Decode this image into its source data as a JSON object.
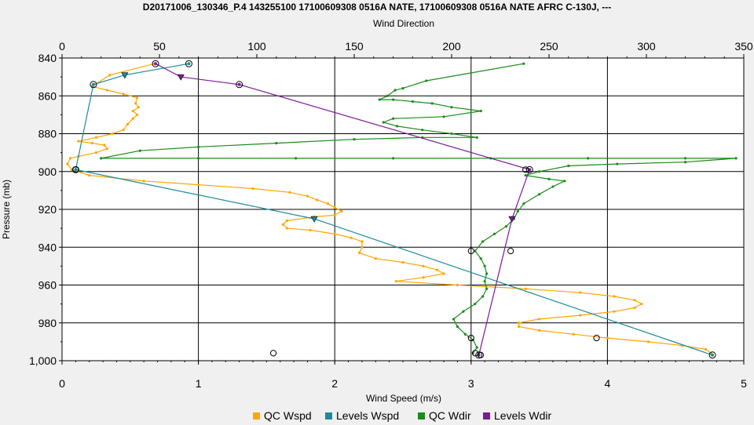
{
  "title": "D20171006_130346_P.4 143255100 17100609308 0516A NATE, 17100609308 0516A NATE AFRC C-130J, ---",
  "chart_data": {
    "type": "line",
    "title": "D20171006_130346_P.4 143255100 17100609308 0516A NATE, 17100609308 0516A NATE AFRC C-130J, ---",
    "xlabel": "Wind Speed (m/s)",
    "x2label": "Wind Direction",
    "ylabel": "Pressure (mb)",
    "xlim": [
      0,
      5
    ],
    "x2lim": [
      0,
      350
    ],
    "ylim": [
      840,
      1000
    ],
    "y_inverted": true,
    "grid": true,
    "legend_position": "bottom",
    "xticks": [
      "0",
      "1",
      "2",
      "3",
      "4",
      "5"
    ],
    "x2ticks": [
      "0",
      "50",
      "100",
      "150",
      "200",
      "250",
      "300",
      "350"
    ],
    "yticks": [
      "840",
      "860",
      "880",
      "900",
      "920",
      "940",
      "960",
      "980",
      "1,000"
    ],
    "series": [
      {
        "name": "QC Wspd",
        "axis": "bottom",
        "color": "#ffa500",
        "points": [
          [
            0.68,
            843
          ],
          [
            0.35,
            849
          ],
          [
            0.22,
            855
          ],
          [
            0.33,
            857
          ],
          [
            0.45,
            859
          ],
          [
            0.55,
            861
          ],
          [
            0.54,
            864
          ],
          [
            0.56,
            866
          ],
          [
            0.52,
            868
          ],
          [
            0.55,
            870
          ],
          [
            0.52,
            872
          ],
          [
            0.48,
            875
          ],
          [
            0.45,
            878
          ],
          [
            0.37,
            880
          ],
          [
            0.25,
            882
          ],
          [
            0.12,
            884
          ],
          [
            0.22,
            885
          ],
          [
            0.31,
            886
          ],
          [
            0.33,
            888
          ],
          [
            0.25,
            890
          ],
          [
            0.12,
            892
          ],
          [
            0.06,
            893
          ],
          [
            0.04,
            896
          ],
          [
            0.07,
            899
          ],
          [
            0.2,
            902
          ],
          [
            0.6,
            905
          ],
          [
            1.0,
            907
          ],
          [
            1.4,
            909
          ],
          [
            1.67,
            911
          ],
          [
            1.8,
            913
          ],
          [
            1.87,
            915
          ],
          [
            1.95,
            917
          ],
          [
            2.0,
            919
          ],
          [
            2.05,
            921
          ],
          [
            2.0,
            923
          ],
          [
            1.85,
            924
          ],
          [
            1.65,
            926
          ],
          [
            1.62,
            928
          ],
          [
            1.65,
            930
          ],
          [
            1.82,
            931
          ],
          [
            2.0,
            933
          ],
          [
            2.12,
            935
          ],
          [
            2.2,
            937
          ],
          [
            2.2,
            940
          ],
          [
            2.18,
            943
          ],
          [
            2.3,
            946
          ],
          [
            2.5,
            948
          ],
          [
            2.65,
            950
          ],
          [
            2.75,
            952
          ],
          [
            2.8,
            954
          ],
          [
            2.65,
            956
          ],
          [
            2.45,
            958
          ],
          [
            2.9,
            960
          ],
          [
            3.4,
            962
          ],
          [
            3.8,
            964
          ],
          [
            4.05,
            966
          ],
          [
            4.2,
            968
          ],
          [
            4.25,
            970
          ],
          [
            4.2,
            972
          ],
          [
            4.05,
            974
          ],
          [
            3.8,
            976
          ],
          [
            3.5,
            978
          ],
          [
            3.35,
            980
          ],
          [
            3.35,
            982
          ],
          [
            3.5,
            984
          ],
          [
            3.75,
            986
          ],
          [
            4.0,
            988
          ],
          [
            4.3,
            990
          ],
          [
            4.55,
            992
          ],
          [
            4.72,
            994
          ],
          [
            4.76,
            996
          ]
        ]
      },
      {
        "name": "Levels Wspd",
        "axis": "bottom",
        "color": "#1a8c9c",
        "points": [
          [
            0.93,
            843
          ],
          [
            0.46,
            849
          ],
          [
            0.23,
            854
          ],
          [
            0.1,
            899
          ],
          [
            1.85,
            925
          ],
          [
            4.77,
            997
          ]
        ]
      },
      {
        "name": "QC Wdir",
        "axis": "top",
        "color": "#1a8c1a",
        "points": [
          [
            237,
            843
          ],
          [
            187,
            852
          ],
          [
            175,
            856
          ],
          [
            171,
            857
          ],
          [
            167,
            860
          ],
          [
            163,
            862
          ],
          [
            170,
            862
          ],
          [
            180,
            863
          ],
          [
            190,
            864
          ],
          [
            200,
            866
          ],
          [
            215,
            868
          ],
          [
            196,
            871
          ],
          [
            170,
            872
          ],
          [
            165,
            874
          ],
          [
            172,
            876
          ],
          [
            185,
            878
          ],
          [
            200,
            880
          ],
          [
            213,
            882
          ],
          [
            185,
            882
          ],
          [
            150,
            883
          ],
          [
            110,
            885
          ],
          [
            70,
            887
          ],
          [
            40,
            889
          ],
          [
            20,
            893
          ],
          [
            70,
            893
          ],
          [
            120,
            893
          ],
          [
            170,
            893
          ],
          [
            220,
            893
          ],
          [
            270,
            893
          ],
          [
            320,
            893
          ],
          [
            346,
            893
          ],
          [
            320,
            895
          ],
          [
            285,
            896
          ],
          [
            260,
            897
          ],
          [
            245,
            900
          ],
          [
            238,
            902
          ],
          [
            250,
            904
          ],
          [
            258,
            905
          ],
          [
            252,
            908
          ],
          [
            245,
            912
          ],
          [
            237,
            917
          ],
          [
            234,
            921
          ],
          [
            232,
            925
          ],
          [
            228,
            929
          ],
          [
            222,
            933
          ],
          [
            216,
            937
          ],
          [
            212,
            942
          ],
          [
            215,
            946
          ],
          [
            217,
            950
          ],
          [
            218,
            954
          ],
          [
            217,
            958
          ],
          [
            218,
            962
          ],
          [
            216,
            966
          ],
          [
            212,
            970
          ],
          [
            206,
            974
          ],
          [
            201,
            978
          ],
          [
            203,
            982
          ],
          [
            207,
            986
          ],
          [
            211,
            989
          ],
          [
            213,
            993
          ],
          [
            211,
            996
          ]
        ]
      },
      {
        "name": "Levels Wdir",
        "axis": "top",
        "color": "#7b1a9c",
        "points": [
          [
            48,
            843
          ],
          [
            61,
            850
          ],
          [
            91,
            854
          ],
          [
            240,
            899
          ],
          [
            231,
            925
          ],
          [
            214,
            997
          ]
        ]
      }
    ],
    "markers": [
      {
        "series": "Levels Wspd",
        "shape": "circle",
        "x": 0.93,
        "y": 843
      },
      {
        "series": "Levels Wspd",
        "shape": "triangle",
        "x": 0.46,
        "y": 849
      },
      {
        "series": "Levels Wspd",
        "shape": "circle",
        "x": 0.23,
        "y": 854
      },
      {
        "series": "Levels Wspd",
        "shape": "circle",
        "x": 0.1,
        "y": 899
      },
      {
        "series": "Levels Wspd",
        "shape": "triangle",
        "x": 1.85,
        "y": 925
      },
      {
        "series": "Levels Wspd",
        "shape": "circle",
        "x": 4.77,
        "y": 997
      },
      {
        "series": "Levels Wdir",
        "shape": "circle",
        "x": 48,
        "y": 843
      },
      {
        "series": "Levels Wdir",
        "shape": "triangle",
        "x": 61,
        "y": 850
      },
      {
        "series": "Levels Wdir",
        "shape": "circle",
        "x": 91,
        "y": 854
      },
      {
        "series": "Levels Wdir",
        "shape": "circle",
        "x": 240,
        "y": 899
      },
      {
        "series": "Levels Wdir",
        "shape": "triangle",
        "x": 231,
        "y": 925
      },
      {
        "series": "Levels Wdir",
        "shape": "circle",
        "x": 214,
        "y": 997
      },
      {
        "series": "",
        "shape": "open-circle",
        "x": 1.55,
        "y": 996
      },
      {
        "series": "",
        "shape": "open-circle",
        "x": 3.0,
        "y": 942
      },
      {
        "series": "",
        "shape": "open-circle",
        "x": 3.29,
        "y": 942
      },
      {
        "series": "",
        "shape": "open-circle",
        "x": 3.0,
        "y": 988
      },
      {
        "series": "",
        "shape": "open-circle",
        "x": 3.92,
        "y": 988
      },
      {
        "series": "",
        "shape": "open-circle",
        "x": 3.03,
        "y": 996
      },
      {
        "series": "",
        "shape": "open-circle",
        "x": 3.07,
        "y": 997
      },
      {
        "series": "",
        "shape": "open-circle",
        "x": 0.1,
        "y": 899
      },
      {
        "series": "",
        "shape": "open-circle",
        "x": 3.4,
        "y": 899
      }
    ]
  }
}
